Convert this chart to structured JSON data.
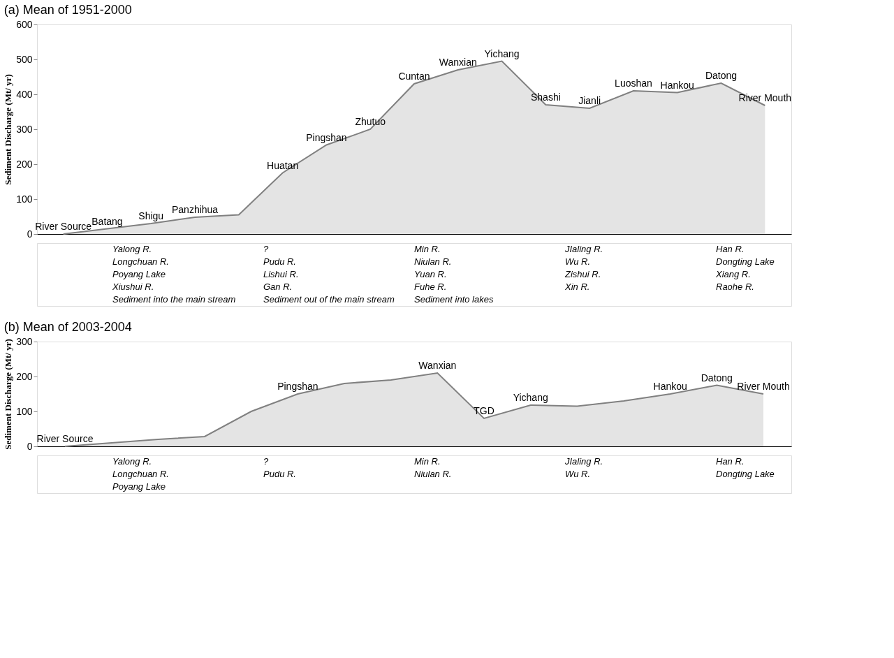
{
  "chart_data": [
    {
      "type": "area",
      "title": "(a) Mean of 1951-2000",
      "ylabel": "Sediment Discharge (Mt/ yr)",
      "categories": [
        null,
        null,
        null,
        null,
        null,
        null,
        null,
        null,
        null,
        null,
        null,
        null,
        null,
        null,
        null,
        null,
        null
      ],
      "series": [
        {
          "color": "#d9d9d9",
          "values": [
            0,
            15,
            30,
            48,
            55,
            175,
            255,
            300,
            430,
            470,
            495,
            370,
            360,
            410,
            405,
            432,
            368
          ]
        }
      ],
      "value_labels": [
        "River Source",
        "Batang",
        "Shigu",
        "Panzhihua",
        null,
        "Huatan",
        "Pingshan",
        "Zhutuo",
        "Cuntan",
        "Wanxian",
        "Yichang",
        "Shashi",
        "Jianli",
        "Luoshan",
        "Hankou",
        "Datong",
        "River Mouth"
      ],
      "ylim": [
        0,
        600
      ],
      "yticks": [
        0,
        100,
        200,
        300,
        400,
        500,
        600
      ],
      "grid": false,
      "tick_labels": "y",
      "annotations": [
        "Yalong R.",
        "?",
        "Min R.",
        "JIaling R.",
        "Han R.",
        "Longchuan R.",
        "Pudu R.",
        "Niulan R.",
        "Wu R.",
        "Dongting Lake",
        "Poyang Lake",
        "Lishui R.",
        "Yuan R.",
        "Zishui R.",
        "Xiang R.",
        "Xiushui R.",
        "Gan R.",
        "Fuhe R.",
        "Xin R.",
        "Raohe R.",
        "Sediment into the main stream",
        "Sediment out of the main stream",
        "Sediment into lakes"
      ]
    },
    {
      "type": "area",
      "title": "(b) Mean of 2003-2004",
      "ylabel": "Sediment Discharge (Mt/ yr)",
      "categories": [
        null,
        null,
        null,
        null,
        null,
        null,
        null,
        null,
        null,
        null,
        null,
        null,
        null,
        null,
        null,
        null
      ],
      "series": [
        {
          "color": "#d9d9d9",
          "values": [
            0,
            10,
            20,
            28,
            100,
            150,
            180,
            190,
            210,
            80,
            118,
            115,
            130,
            150,
            175,
            150
          ]
        }
      ],
      "value_labels": [
        "River Source",
        null,
        null,
        null,
        null,
        "Pingshan",
        null,
        null,
        "Wanxian",
        "TGD",
        "Yichang",
        null,
        null,
        "Hankou",
        "Datong",
        "River Mouth"
      ],
      "ylim": [
        0,
        300
      ],
      "yticks": [
        0,
        100,
        200,
        300
      ],
      "grid": false,
      "tick_labels": "y",
      "annotations": [
        "Yalong R.",
        "?",
        "Min R.",
        "JIaling R.",
        "Han R.",
        "Longchuan R.",
        "Pudu R.",
        "Niulan R.",
        "Wu R.",
        "Dongting Lake",
        "Poyang Lake"
      ]
    }
  ]
}
